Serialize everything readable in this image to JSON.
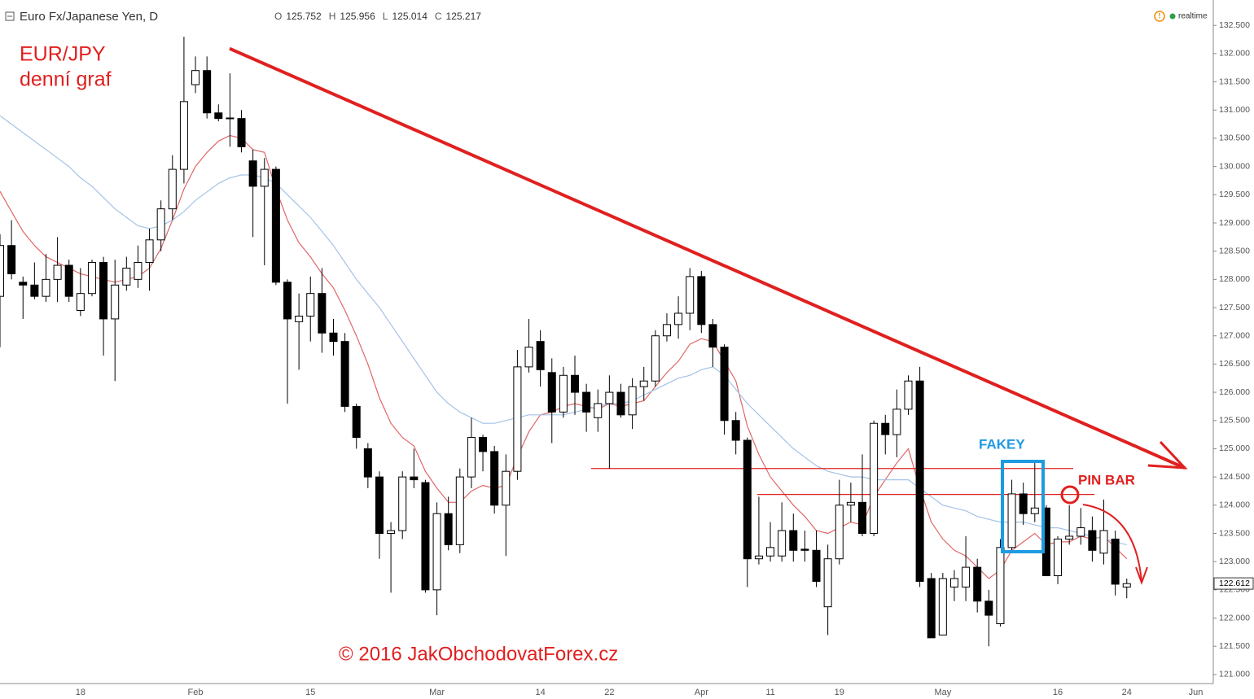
{
  "chart_data": {
    "type": "candlestick",
    "title": "Euro Fx/Japanese Yen, D",
    "ohlc_legend": [
      {
        "label": "O",
        "value": 125.752
      },
      {
        "label": "H",
        "value": 125.956
      },
      {
        "label": "L",
        "value": 125.014
      },
      {
        "label": "C",
        "value": 125.217
      }
    ],
    "status": "realtime",
    "annotations": {
      "pair": "EUR/JPY",
      "timeframe": "denní graf",
      "fakey": "FAKEY",
      "pin_bar": "PIN BAR",
      "copyright": "© 2016 JakObchodovatForex.cz"
    },
    "categories": [
      null,
      null,
      null,
      null,
      null,
      null,
      null,
      "18",
      null,
      null,
      null,
      null,
      null,
      null,
      null,
      null,
      null,
      "Feb",
      null,
      null,
      null,
      null,
      null,
      null,
      null,
      null,
      null,
      "15",
      null,
      null,
      null,
      null,
      null,
      null,
      null,
      null,
      null,
      null,
      "Mar",
      null,
      null,
      null,
      null,
      null,
      null,
      null,
      null,
      "14",
      null,
      null,
      null,
      null,
      null,
      "22",
      null,
      null,
      null,
      null,
      null,
      null,
      null,
      "Apr",
      null,
      null,
      null,
      null,
      null,
      "11",
      null,
      null,
      null,
      null,
      null,
      "19",
      null,
      null,
      null,
      null,
      null,
      null,
      null,
      null,
      "May",
      null,
      null,
      null,
      null,
      null,
      null,
      null,
      null,
      null,
      "16",
      null,
      null,
      null,
      null,
      null,
      "24",
      null,
      null,
      null,
      null,
      null,
      "Jun",
      null
    ],
    "open": [
      127.7,
      128.6,
      127.95,
      127.9,
      127.7,
      128.0,
      128.25,
      127.45,
      127.75,
      128.3,
      127.3,
      127.9,
      128.0,
      128.3,
      128.7,
      129.25,
      129.95,
      131.45,
      131.7,
      130.95,
      130.86,
      130.85,
      130.1,
      129.65,
      129.95,
      127.95,
      127.25,
      127.35,
      127.75,
      127.05,
      126.9,
      125.75,
      125.0,
      124.5,
      123.5,
      123.55,
      124.5,
      124.4,
      122.5,
      123.85,
      123.3,
      124.5,
      125.2,
      124.95,
      124.0,
      124.6,
      126.45,
      126.9,
      126.35,
      125.65,
      126.3,
      126.0,
      125.55,
      125.8,
      126.0,
      125.6,
      126.1,
      126.2,
      127.0,
      127.2,
      127.4,
      128.05,
      127.2,
      126.8,
      125.5,
      125.15,
      123.05,
      123.1,
      123.1,
      123.55,
      123.22,
      123.2,
      122.2,
      123.05,
      124.0,
      124.05,
      123.5,
      125.45,
      125.25,
      125.7,
      126.2,
      122.7,
      121.7,
      122.55,
      122.55,
      122.9,
      122.3,
      121.9,
      123.25,
      124.2,
      123.85,
      123.95,
      122.75,
      123.4,
      123.45,
      123.55,
      123.15,
      123.4,
      122.55,
      null,
      null,
      null,
      null,
      null,
      null,
      null
    ],
    "high": [
      128.8,
      129.05,
      128.05,
      128.3,
      128.45,
      128.75,
      128.35,
      128.2,
      128.35,
      128.4,
      128.35,
      128.4,
      128.6,
      128.9,
      129.4,
      130.2,
      132.3,
      131.95,
      131.95,
      131.1,
      131.65,
      131.0,
      130.3,
      130.15,
      130.0,
      128.0,
      127.75,
      128.05,
      128.2,
      127.3,
      127.05,
      125.8,
      125.1,
      124.6,
      123.7,
      124.6,
      125.0,
      124.45,
      124.05,
      124.15,
      124.65,
      125.55,
      125.25,
      125.05,
      124.9,
      126.75,
      127.3,
      127.1,
      126.6,
      126.45,
      126.65,
      126.15,
      126.05,
      126.3,
      126.15,
      126.25,
      126.45,
      127.1,
      127.4,
      127.7,
      128.2,
      128.15,
      127.3,
      126.85,
      125.65,
      125.2,
      124.15,
      123.7,
      124.05,
      123.85,
      123.55,
      123.55,
      123.3,
      124.45,
      124.4,
      124.9,
      125.5,
      125.6,
      126.05,
      126.3,
      126.45,
      122.8,
      122.8,
      122.85,
      123.45,
      123.05,
      122.5,
      123.4,
      124.45,
      124.4,
      124.75,
      124.0,
      123.45,
      124.0,
      123.95,
      123.8,
      124.1,
      123.55,
      122.7,
      null,
      null,
      null,
      null,
      null,
      null,
      null
    ],
    "low": [
      126.8,
      128.0,
      127.3,
      127.65,
      127.6,
      127.6,
      127.6,
      127.35,
      127.7,
      126.65,
      126.2,
      127.8,
      127.85,
      127.8,
      128.5,
      129.05,
      129.7,
      131.3,
      130.85,
      130.8,
      130.35,
      130.25,
      128.75,
      128.25,
      127.9,
      125.8,
      126.4,
      126.9,
      126.7,
      126.65,
      125.65,
      125.0,
      124.3,
      123.05,
      122.45,
      123.4,
      124.3,
      122.45,
      122.05,
      123.2,
      123.15,
      124.3,
      124.6,
      123.85,
      123.1,
      124.45,
      126.35,
      126.1,
      125.1,
      125.55,
      125.6,
      125.3,
      125.3,
      124.65,
      125.55,
      125.35,
      125.85,
      126.1,
      126.9,
      126.95,
      127.1,
      127.05,
      126.45,
      125.25,
      124.9,
      122.55,
      122.95,
      123.0,
      123.0,
      123.0,
      123.0,
      122.55,
      121.7,
      122.95,
      123.7,
      123.45,
      123.45,
      124.9,
      124.85,
      125.6,
      122.55,
      121.65,
      121.7,
      122.3,
      122.3,
      122.1,
      121.5,
      121.85,
      123.2,
      123.65,
      123.7,
      122.75,
      122.6,
      123.3,
      123.3,
      123.0,
      122.95,
      122.4,
      122.35,
      null,
      null,
      null,
      null,
      null,
      null,
      null
    ],
    "close": [
      128.6,
      128.1,
      127.9,
      127.7,
      128.0,
      128.25,
      127.7,
      127.75,
      128.3,
      127.3,
      127.9,
      128.2,
      128.3,
      128.7,
      129.25,
      129.95,
      131.15,
      131.7,
      130.95,
      130.85,
      130.85,
      130.35,
      129.65,
      129.95,
      127.95,
      127.3,
      127.35,
      127.75,
      127.05,
      126.9,
      125.75,
      125.2,
      124.5,
      123.5,
      123.55,
      124.5,
      124.45,
      122.5,
      123.85,
      123.3,
      124.5,
      125.2,
      124.95,
      124.0,
      124.6,
      126.45,
      126.8,
      126.4,
      125.65,
      126.3,
      126.0,
      125.65,
      125.8,
      126.0,
      125.6,
      126.1,
      126.2,
      127.0,
      127.2,
      127.4,
      128.05,
      127.2,
      126.8,
      125.5,
      125.15,
      123.05,
      123.1,
      123.25,
      123.55,
      123.2,
      123.2,
      122.65,
      123.05,
      124.0,
      124.05,
      123.5,
      125.45,
      125.25,
      125.7,
      126.2,
      122.65,
      121.65,
      122.7,
      122.7,
      122.9,
      122.3,
      122.05,
      123.25,
      124.2,
      123.85,
      123.95,
      122.75,
      123.4,
      123.45,
      123.6,
      123.2,
      123.55,
      122.6,
      122.61,
      null,
      null,
      null,
      null,
      null,
      null,
      null
    ],
    "up_color": "#ffffff",
    "down_color": "#000000",
    "moving_averages": [
      {
        "color": "#e06666",
        "values": [
          129.56,
          129.2,
          128.85,
          128.6,
          128.4,
          128.3,
          128.2,
          128.1,
          128.05,
          128.0,
          127.95,
          128.0,
          128.05,
          128.2,
          128.55,
          129.05,
          129.6,
          130.0,
          130.25,
          130.45,
          130.55,
          130.5,
          130.3,
          130.25,
          129.6,
          129.05,
          128.65,
          128.4,
          128.1,
          127.85,
          127.45,
          127.0,
          126.5,
          125.9,
          125.45,
          125.2,
          125.05,
          124.6,
          124.3,
          124.05,
          124.05,
          124.25,
          124.35,
          124.3,
          124.35,
          124.85,
          125.3,
          125.6,
          125.65,
          125.75,
          125.8,
          125.75,
          125.7,
          125.8,
          125.75,
          125.8,
          125.85,
          126.1,
          126.35,
          126.55,
          126.85,
          126.95,
          126.9,
          126.55,
          126.2,
          125.4,
          124.9,
          124.5,
          124.25,
          124.0,
          123.8,
          123.55,
          123.5,
          123.6,
          123.7,
          123.65,
          124.15,
          124.45,
          124.75,
          125.0,
          124.3,
          123.7,
          123.4,
          123.2,
          123.1,
          122.9,
          122.7,
          122.85,
          123.2,
          123.35,
          123.5,
          123.3,
          123.35,
          123.35,
          123.45,
          123.4,
          123.45,
          123.25,
          123.05,
          null,
          null,
          null,
          null,
          null,
          null,
          null
        ]
      },
      {
        "color": "#a4c2e8",
        "values": [
          130.9,
          130.75,
          130.6,
          130.45,
          130.3,
          130.15,
          130.0,
          129.8,
          129.65,
          129.45,
          129.25,
          129.1,
          128.95,
          128.9,
          128.95,
          129.05,
          129.2,
          129.4,
          129.55,
          129.7,
          129.8,
          129.85,
          129.85,
          129.8,
          129.7,
          129.5,
          129.3,
          129.1,
          128.85,
          128.6,
          128.3,
          128.0,
          127.75,
          127.5,
          127.2,
          126.9,
          126.6,
          126.3,
          126.0,
          125.8,
          125.65,
          125.55,
          125.45,
          125.45,
          125.5,
          125.55,
          125.6,
          125.6,
          125.6,
          125.6,
          125.65,
          125.7,
          125.75,
          125.8,
          125.8,
          125.85,
          125.95,
          126.05,
          126.15,
          126.25,
          126.3,
          126.4,
          126.45,
          126.3,
          126.05,
          125.8,
          125.6,
          125.4,
          125.2,
          125.0,
          124.85,
          124.7,
          124.6,
          124.55,
          124.5,
          124.5,
          124.45,
          124.45,
          124.45,
          124.45,
          124.3,
          124.15,
          124.0,
          123.95,
          123.9,
          123.8,
          123.75,
          123.7,
          123.7,
          123.7,
          123.65,
          123.6,
          123.6,
          123.55,
          123.5,
          123.45,
          123.4,
          123.35,
          123.3,
          null,
          null,
          null,
          null,
          null,
          null,
          null
        ]
      }
    ],
    "levels": [
      124.65,
      124.19
    ],
    "trendline": [
      132.09,
      124.66
    ],
    "annotation_color": "#e0201f",
    "ylim": [
      120.84,
      132.95
    ],
    "yticks": [
      {
        "value": 121,
        "label": "121.000"
      },
      {
        "value": 121.5,
        "label": "121.500"
      },
      {
        "value": 122,
        "label": "122.000"
      },
      {
        "value": 122.5,
        "label": "122.500"
      },
      {
        "value": 123,
        "label": "123.000"
      },
      {
        "value": 123.5,
        "label": "123.500"
      },
      {
        "value": 124,
        "label": "124.000"
      },
      {
        "value": 124.5,
        "label": "124.500"
      },
      {
        "value": 125,
        "label": "125.000"
      },
      {
        "value": 125.5,
        "label": "125.500"
      },
      {
        "value": 126,
        "label": "126.000"
      },
      {
        "value": 126.5,
        "label": "126.500"
      },
      {
        "value": 127,
        "label": "127.000"
      },
      {
        "value": 127.5,
        "label": "127.500"
      },
      {
        "value": 128,
        "label": "128.000"
      },
      {
        "value": 128.5,
        "label": "128.500"
      },
      {
        "value": 129,
        "label": "129.000"
      },
      {
        "value": 129.5,
        "label": "129.500"
      },
      {
        "value": 130,
        "label": "130.000"
      },
      {
        "value": 130.5,
        "label": "130.500"
      },
      {
        "value": 131,
        "label": "131.000"
      },
      {
        "value": 131.5,
        "label": "131.500"
      },
      {
        "value": 132,
        "label": "132.000"
      },
      {
        "value": 132.5,
        "label": "132.500"
      }
    ],
    "last_price": 122.612
  }
}
